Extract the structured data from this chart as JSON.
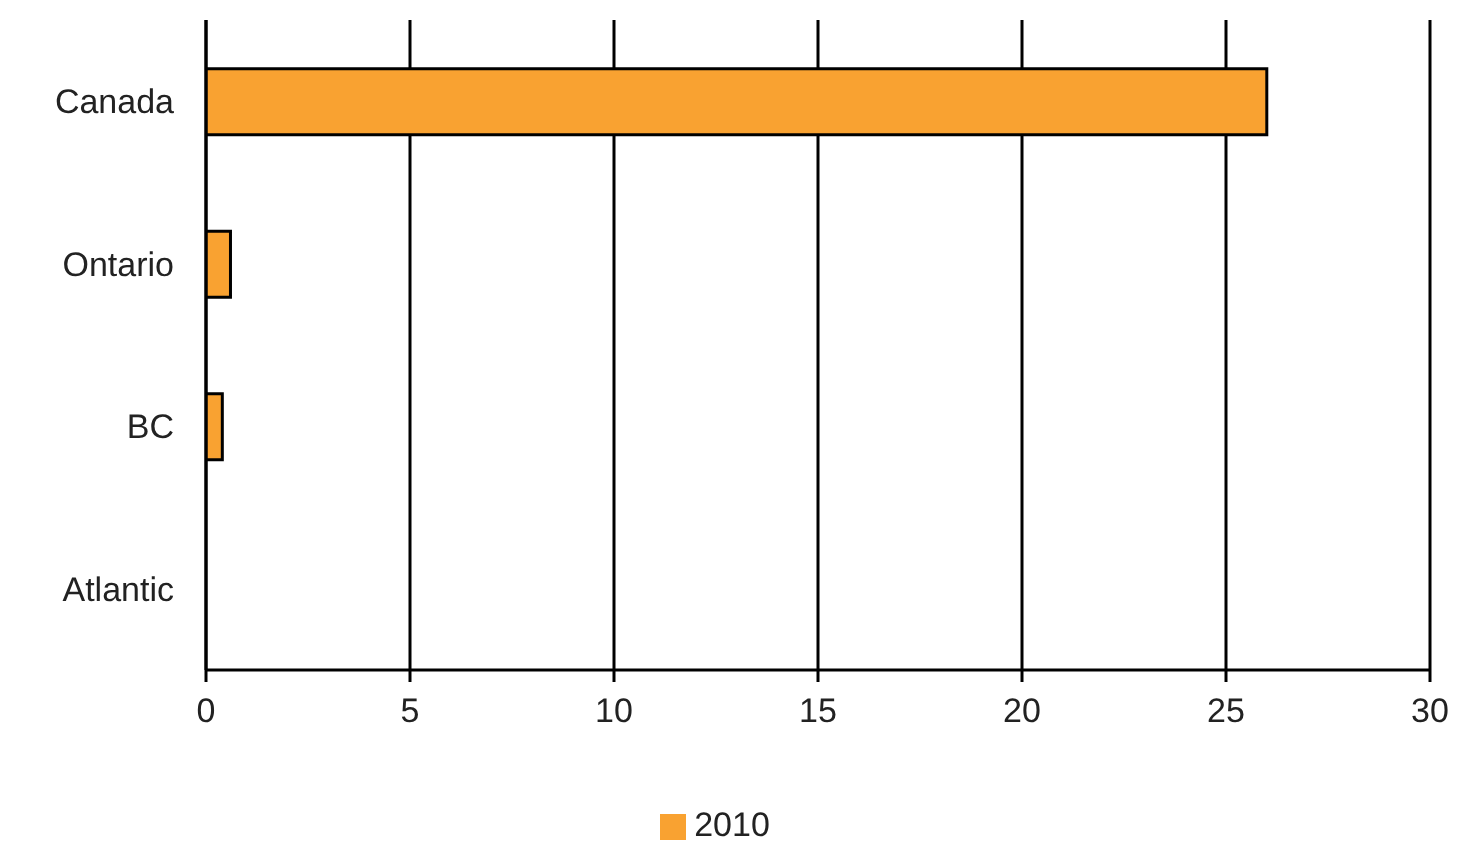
{
  "chart_data": {
    "type": "bar",
    "orientation": "horizontal",
    "categories": [
      "Canada",
      "Ontario",
      "BC",
      "Atlantic"
    ],
    "series": [
      {
        "name": "2010",
        "color": "#f9a231",
        "values": [
          26,
          0.6,
          0.4,
          0
        ]
      }
    ],
    "xlim": [
      0,
      30
    ],
    "xticks": [
      0,
      5,
      10,
      15,
      20,
      25,
      30
    ],
    "grid": "x",
    "legend": "bottom"
  }
}
